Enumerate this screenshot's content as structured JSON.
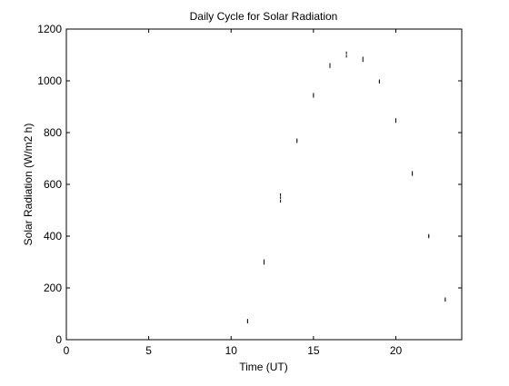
{
  "chart_data": {
    "type": "scatter",
    "title": "Daily Cycle for Solar Radiation",
    "xlabel": "Time (UT)",
    "ylabel": "Solar Radiation (W/m2 h)",
    "xlim": [
      0,
      24
    ],
    "ylim": [
      0,
      1200
    ],
    "x_ticks": [
      0,
      5,
      10,
      15,
      20
    ],
    "y_ticks": [
      0,
      200,
      400,
      600,
      800,
      1000,
      1200
    ],
    "x_tick_labels": [
      "0",
      "5",
      "10",
      "15",
      "20"
    ],
    "y_tick_labels": [
      "0",
      "200",
      "400",
      "600",
      "800",
      "1000",
      "1200"
    ],
    "grid": false,
    "marker": "point",
    "marker_color": "#000000",
    "series": [
      {
        "points": [
          {
            "x": 11,
            "y": 68
          },
          {
            "x": 11,
            "y": 75
          },
          {
            "x": 12,
            "y": 295
          },
          {
            "x": 12,
            "y": 305
          },
          {
            "x": 13,
            "y": 535
          },
          {
            "x": 13,
            "y": 548
          },
          {
            "x": 13,
            "y": 560
          },
          {
            "x": 14,
            "y": 765
          },
          {
            "x": 14,
            "y": 772
          },
          {
            "x": 15,
            "y": 940
          },
          {
            "x": 15,
            "y": 948
          },
          {
            "x": 16,
            "y": 1055
          },
          {
            "x": 16,
            "y": 1063
          },
          {
            "x": 17,
            "y": 1095
          },
          {
            "x": 17,
            "y": 1108
          },
          {
            "x": 18,
            "y": 1078
          },
          {
            "x": 18,
            "y": 1088
          },
          {
            "x": 19,
            "y": 995
          },
          {
            "x": 19,
            "y": 1000
          },
          {
            "x": 20,
            "y": 843
          },
          {
            "x": 20,
            "y": 850
          },
          {
            "x": 21,
            "y": 638
          },
          {
            "x": 21,
            "y": 646
          },
          {
            "x": 22,
            "y": 397
          },
          {
            "x": 22,
            "y": 403
          },
          {
            "x": 23,
            "y": 152
          },
          {
            "x": 23,
            "y": 158
          }
        ]
      }
    ]
  }
}
